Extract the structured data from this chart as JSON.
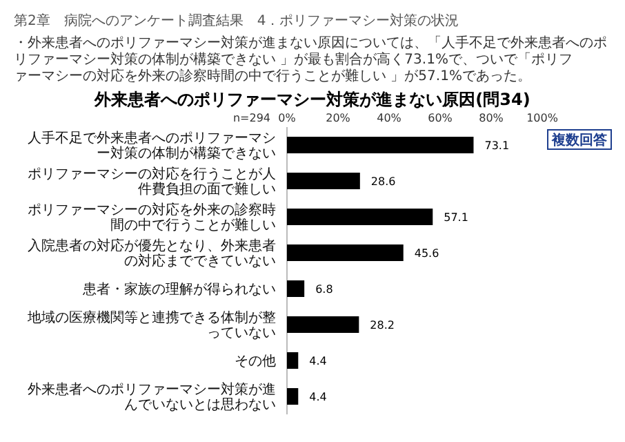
{
  "chart_data": {
    "type": "bar",
    "orientation": "horizontal",
    "title": "外来患者へのポリファーマシー対策が進まない原因(問34)",
    "subtitle": "・外来患者へのポリファーマシー対策が進まない原因については、「人手不足で外来患者へのポリファーマシー対策の体制が構築できない 」が最も割合が高く73.1%で、ついで「ポリファーマシーの対応を外来の診察時間の中で行うことが難しい 」が57.1%であった。",
    "annotations": [
      "第2章　病院へのアンケート調査結果　4．ポリファーマシー対策の状況",
      "n=294",
      "複数回答"
    ],
    "categories": [
      "人手不足で外来患者へのポリファーマシー対策の体制が構築できない",
      "ポリファーマシーの対応を行うことが人件費負担の面で難しい",
      "ポリファーマシーの対応を外来の診察時間の中で行うことが難しい",
      "入院患者の対応が優先となり、外来患者の対応までできていない",
      "患者・家族の理解が得られない",
      "地域の医療機関等と連携できる体制が整っていない",
      "その他",
      "外来患者へのポリファーマシー対策が進んでいないとは思わない"
    ],
    "values": [
      73.1,
      28.6,
      57.1,
      45.6,
      6.8,
      28.2,
      4.4,
      4.4
    ],
    "color": "#000000",
    "data_labels": true,
    "xlim": [
      0,
      100
    ],
    "xticks": [
      {
        "value": 0,
        "label": "0%"
      },
      {
        "value": 20,
        "label": "20%"
      },
      {
        "value": 40,
        "label": "40%"
      },
      {
        "value": 60,
        "label": "60%"
      },
      {
        "value": 80,
        "label": "80%"
      },
      {
        "value": 100,
        "label": "100%"
      }
    ]
  }
}
